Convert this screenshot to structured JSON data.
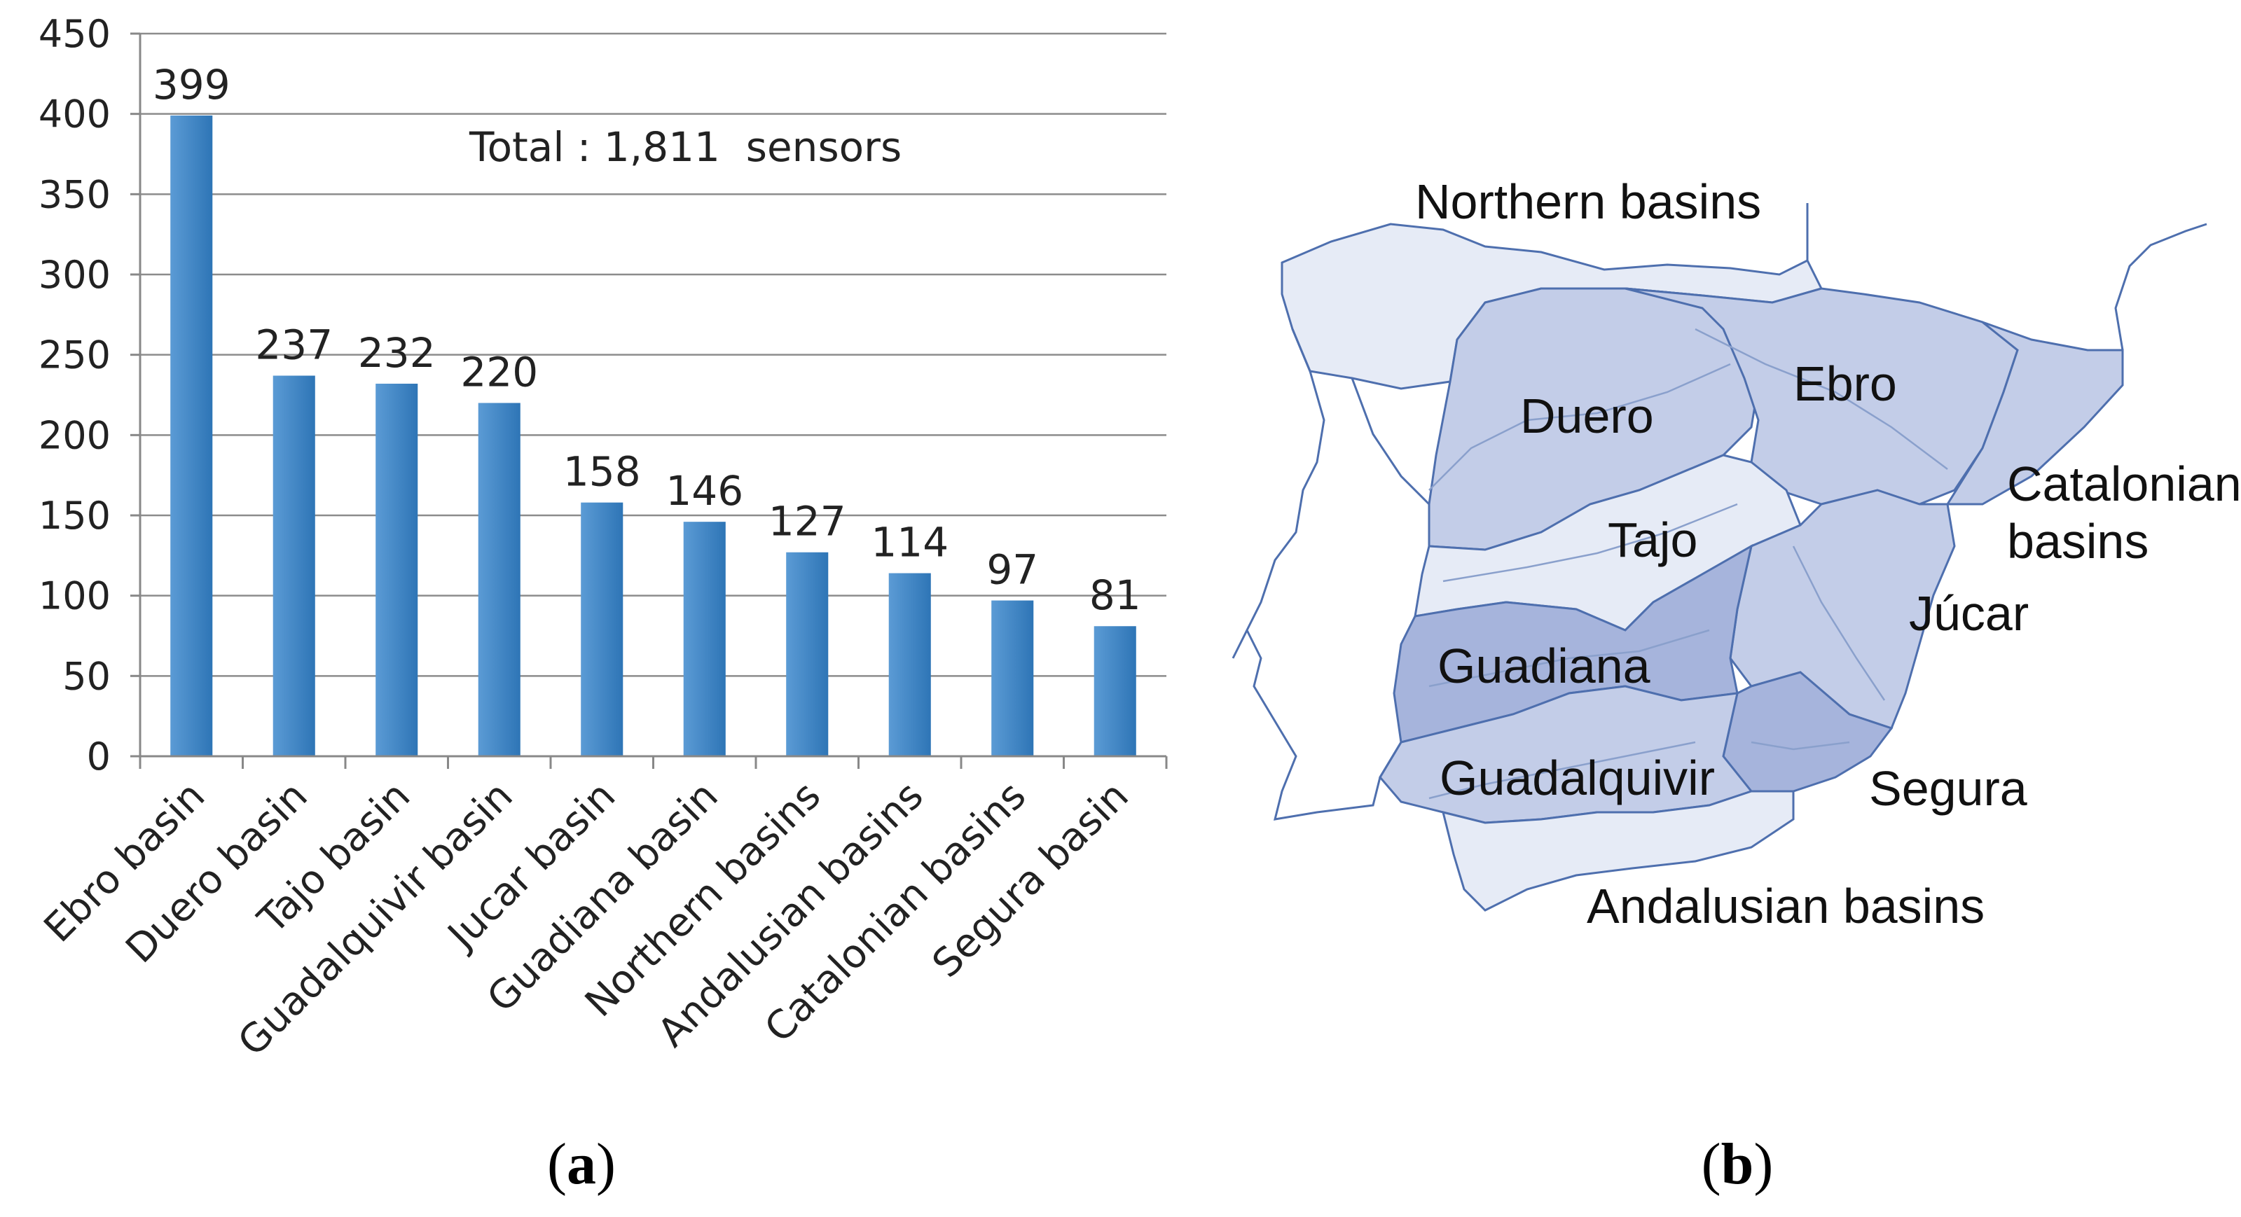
{
  "chart_data": {
    "type": "bar",
    "categories": [
      "Ebro basin",
      "Duero basin",
      "Tajo basin",
      "Guadalquivir basin",
      "Jucar basin",
      "Guadiana basin",
      "Northern basins",
      "Andalusian basins",
      "Catalonian basins",
      "Segura basin"
    ],
    "values": [
      399,
      237,
      232,
      220,
      158,
      146,
      127,
      114,
      97,
      81
    ],
    "value_labels": [
      "399",
      "237",
      "232",
      "220",
      "158",
      "146",
      "127",
      "114",
      "97",
      "81"
    ],
    "ylim": [
      0,
      450
    ],
    "yticks": [
      0,
      50,
      100,
      150,
      200,
      250,
      300,
      350,
      400,
      450
    ],
    "grid": true,
    "annotation": "Total : 1,811  sensors",
    "bar_color": "#5b9bd5",
    "bar_color_dark": "#2e75b6"
  },
  "panels": {
    "a": {
      "open": "(",
      "letter": "a",
      "close": ")"
    },
    "b": {
      "open": "(",
      "letter": "b",
      "close": ")"
    }
  },
  "map": {
    "labels": {
      "northern": "Northern basins",
      "duero": "Duero",
      "ebro": "Ebro",
      "catalonian_1": "Catalonian",
      "catalonian_2": "basins",
      "tajo": "Tajo",
      "jucar": "Júcar",
      "guadiana": "Guadiana",
      "guadalquivir": "Guadalquivir",
      "segura": "Segura",
      "andalusian": "Andalusian basins"
    },
    "colors": {
      "light": "#e6ebf6",
      "medium": "#c3cde8",
      "dark": "#a6b4dc",
      "outline": "#4e6fae"
    }
  }
}
